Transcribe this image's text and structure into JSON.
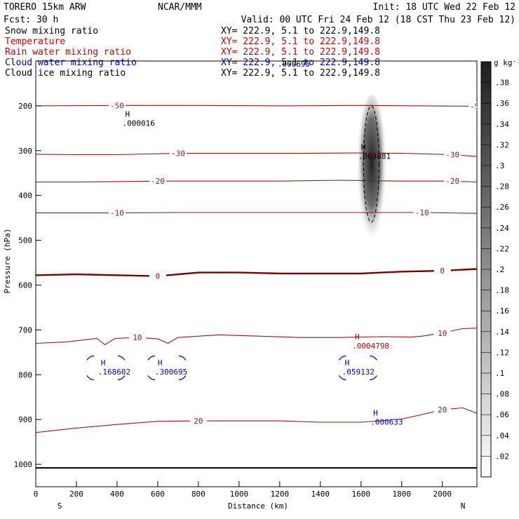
{
  "header": {
    "model": "TORERO  15km ARW",
    "center": "NCAR/MMM",
    "init": "Init: 18 UTC Wed 22 Feb 12",
    "fcst": "Fcst:   30 h",
    "valid": "Valid: 00 UTC Fri 24 Feb 12 (18 CST Thu 23 Feb 12)"
  },
  "fields": [
    {
      "name": "Snow mixing ratio",
      "xy": "XY= 222.9,  5.1 to 222.9,149.8",
      "color": "#000000"
    },
    {
      "name": "Temperature",
      "xy": "XY= 222.9,  5.1 to 222.9,149.8",
      "color": "#cc0000"
    },
    {
      "name": "Rain water mixing ratio",
      "xy": "XY= 222.9,  5.1 to 222.9,149.8",
      "color": "#cc0000"
    },
    {
      "name": "Cloud water mixing ratio",
      "xy": "XY= 222.9,  5.1 to 222.9,149.8",
      "color": "#0000cc"
    },
    {
      "name": "Cloud ice mixing ratio",
      "xy": "XY= 222.9,  5.1 to 222.9,149.8",
      "color": "#000000"
    }
  ],
  "colors": {
    "temperature": "#8b1a1a",
    "freezing_line": "#7a0000",
    "rain_label": "#cc0000",
    "cloud_water": "#0000cc",
    "ice": "#000000",
    "terrain": "#000000"
  },
  "chart_data": {
    "type": "cross-section",
    "xlabel": "Distance (km)",
    "ylabel": "Pressure (hPa)",
    "xlim": [
      0,
      2170
    ],
    "ylim": [
      1050,
      100
    ],
    "xticks": [
      0,
      200,
      400,
      600,
      800,
      1000,
      1200,
      1400,
      1600,
      1800,
      2000
    ],
    "yticks": [
      200,
      300,
      400,
      500,
      600,
      700,
      800,
      900,
      1000
    ],
    "endpoints": {
      "left": "S",
      "right": "N"
    },
    "colorbar": {
      "unit": "g kg⁻¹",
      "ticks": [
        ".38",
        ".36",
        ".34",
        ".32",
        ".3",
        ".28",
        ".26",
        ".24",
        ".22",
        ".2",
        ".18",
        ".16",
        ".14",
        ".12",
        ".1",
        ".08",
        ".06",
        ".04",
        ".02"
      ]
    },
    "temperature_contours": [
      {
        "label": "-50",
        "points": [
          [
            0,
            200
          ],
          [
            400,
            199
          ],
          [
            800,
            199
          ],
          [
            1200,
            200
          ],
          [
            1600,
            199
          ],
          [
            2170,
            201
          ]
        ]
      },
      {
        "label": "-30",
        "points": [
          [
            0,
            308
          ],
          [
            200,
            309
          ],
          [
            400,
            309
          ],
          [
            700,
            306
          ],
          [
            1000,
            306
          ],
          [
            1300,
            306
          ],
          [
            1600,
            305
          ],
          [
            1800,
            306
          ],
          [
            2050,
            309
          ],
          [
            2170,
            313
          ]
        ]
      },
      {
        "label": "-20",
        "points": [
          [
            0,
            370
          ],
          [
            200,
            370
          ],
          [
            400,
            369
          ],
          [
            600,
            368
          ],
          [
            900,
            368
          ],
          [
            1200,
            368
          ],
          [
            1500,
            366
          ],
          [
            1800,
            368
          ],
          [
            2050,
            368
          ],
          [
            2170,
            370
          ]
        ]
      },
      {
        "label": "-10",
        "points": [
          [
            0,
            439
          ],
          [
            200,
            439
          ],
          [
            400,
            439
          ],
          [
            700,
            438
          ],
          [
            1000,
            438
          ],
          [
            1300,
            438
          ],
          [
            1600,
            438
          ],
          [
            1900,
            438
          ],
          [
            2170,
            440
          ]
        ]
      },
      {
        "label": "0",
        "points": [
          [
            0,
            578
          ],
          [
            200,
            576
          ],
          [
            400,
            578
          ],
          [
            600,
            580
          ],
          [
            800,
            572
          ],
          [
            1000,
            572
          ],
          [
            1200,
            574
          ],
          [
            1400,
            574
          ],
          [
            1600,
            574
          ],
          [
            1800,
            570
          ],
          [
            2000,
            568
          ],
          [
            2170,
            564
          ]
        ]
      },
      {
        "label": "10",
        "points": [
          [
            0,
            730
          ],
          [
            150,
            727
          ],
          [
            300,
            719
          ],
          [
            340,
            733
          ],
          [
            390,
            719
          ],
          [
            500,
            717
          ],
          [
            600,
            720
          ],
          [
            650,
            730
          ],
          [
            700,
            717
          ],
          [
            900,
            711
          ],
          [
            1100,
            714
          ],
          [
            1300,
            717
          ],
          [
            1500,
            717
          ],
          [
            1700,
            715
          ],
          [
            1850,
            716
          ],
          [
            1900,
            714
          ],
          [
            2000,
            707
          ],
          [
            2100,
            697
          ],
          [
            2170,
            696
          ]
        ]
      },
      {
        "label": "20",
        "points": [
          [
            0,
            929
          ],
          [
            200,
            919
          ],
          [
            400,
            911
          ],
          [
            600,
            904
          ],
          [
            800,
            903
          ],
          [
            1000,
            903
          ],
          [
            1200,
            903
          ],
          [
            1400,
            906
          ],
          [
            1600,
            906
          ],
          [
            1800,
            899
          ],
          [
            1900,
            889
          ],
          [
            2000,
            878
          ],
          [
            2100,
            874
          ],
          [
            2170,
            886
          ]
        ]
      }
    ],
    "snow_max": {
      "label": "H",
      "value": ".000016",
      "x": 440,
      "p": 240
    },
    "ice_max": {
      "label": "H",
      "value": ".003881",
      "x": 1600,
      "p": 314
    },
    "ice_top": {
      "value": ".000695",
      "x": 1190,
      "p": 108
    },
    "rain_max": {
      "label": "H",
      "value": ".0004798",
      "x": 1570,
      "p": 737
    },
    "cloud_water_maxima": [
      {
        "label": "H",
        "value": ".168602",
        "x": 320,
        "p": 795
      },
      {
        "label": "H",
        "value": ".300695",
        "x": 600,
        "p": 795
      },
      {
        "label": "H",
        "value": ".059132",
        "x": 1520,
        "p": 795
      },
      {
        "label": "H",
        "value": ".000633",
        "x": 1660,
        "p": 907
      }
    ]
  }
}
